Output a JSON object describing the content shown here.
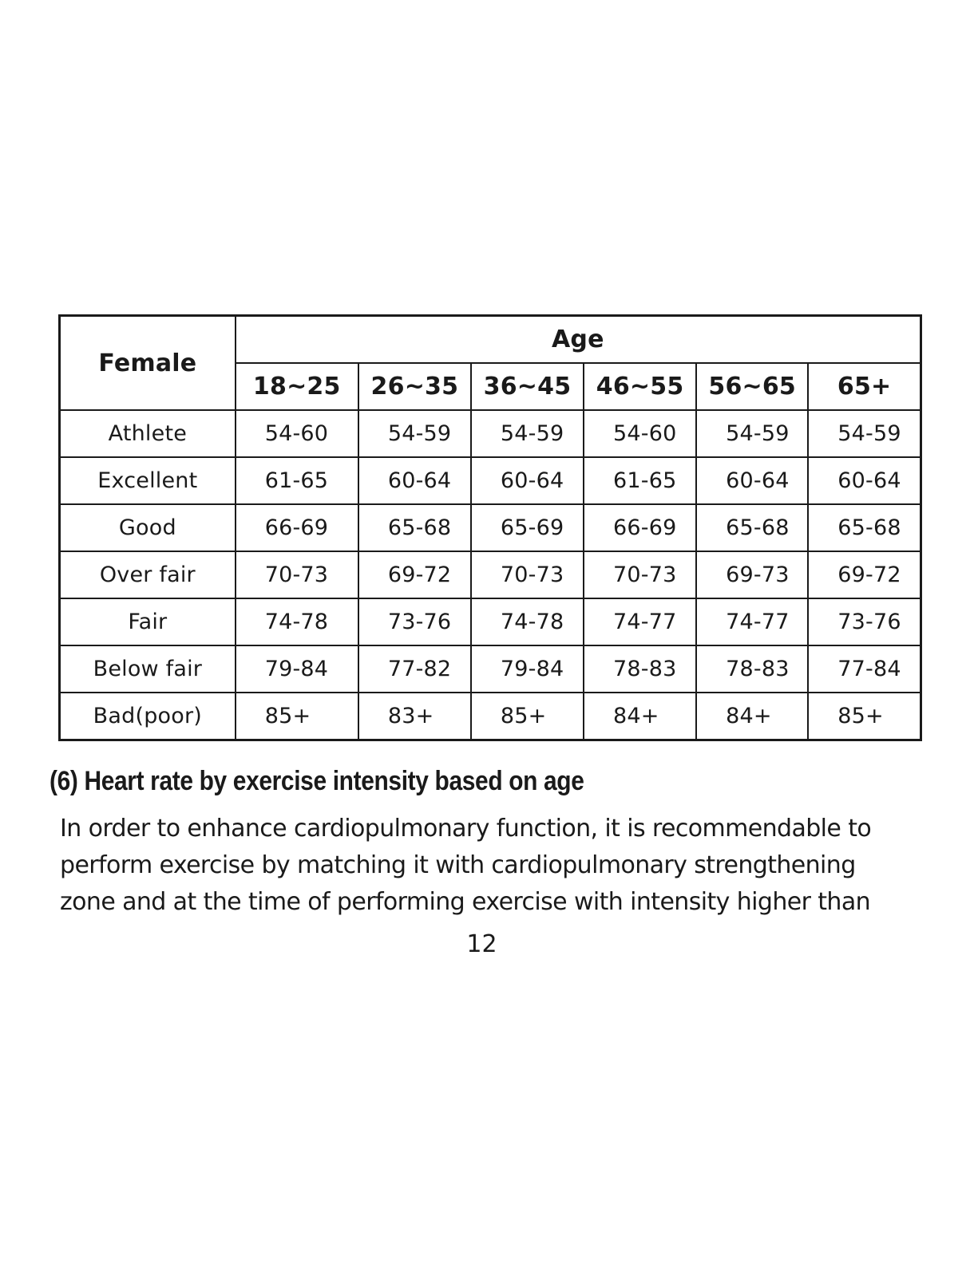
{
  "table": {
    "corner_label": "Female",
    "group_header": "Age",
    "age_ranges": [
      "18~25",
      "26~35",
      "36~45",
      "46~55",
      "56~65",
      "65+"
    ],
    "rows": [
      {
        "label": "Athlete",
        "values": [
          "54-60",
          "54-59",
          "54-59",
          "54-60",
          "54-59",
          "54-59"
        ]
      },
      {
        "label": "Excellent",
        "values": [
          "61-65",
          "60-64",
          "60-64",
          "61-65",
          "60-64",
          "60-64"
        ]
      },
      {
        "label": "Good",
        "values": [
          "66-69",
          "65-68",
          "65-69",
          "66-69",
          "65-68",
          "65-68"
        ]
      },
      {
        "label": "Over fair",
        "values": [
          "70-73",
          "69-72",
          "70-73",
          "70-73",
          "69-73",
          "69-72"
        ]
      },
      {
        "label": "Fair",
        "values": [
          "74-78",
          "73-76",
          "74-78",
          "74-77",
          "74-77",
          "73-76"
        ]
      },
      {
        "label": "Below fair",
        "values": [
          "79-84",
          "77-82",
          "79-84",
          "78-83",
          "78-83",
          "77-84"
        ]
      },
      {
        "label": "Bad(poor)",
        "values": [
          "85+",
          "83+",
          "85+",
          "84+",
          "84+",
          "85+"
        ]
      }
    ]
  },
  "section": {
    "title": "(6) Heart rate by exercise intensity based on age",
    "lines": [
      "In order to enhance cardiopulmonary function, it is recommendable to",
      "perform exercise by matching it with cardiopulmonary strengthening",
      "zone and at the time of performing exercise with intensity higher than"
    ]
  },
  "page_number": "12"
}
